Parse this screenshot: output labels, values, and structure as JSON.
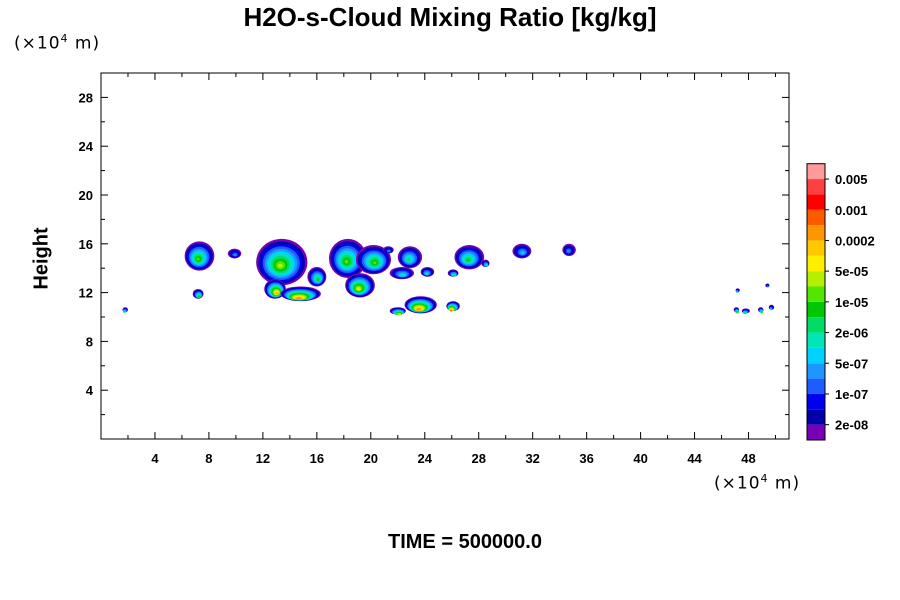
{
  "chart_data": {
    "type": "heatmap",
    "title": "H2O-s-Cloud Mixing Ratio [kg/kg]",
    "ylabel": "Height",
    "xlabel": "",
    "x_unit": {
      "prefix": "(×10",
      "exp": "4",
      "suffix": " m)"
    },
    "y_unit": {
      "prefix": "(×10",
      "exp": "4",
      "suffix": " m)"
    },
    "xlim": [
      0,
      51
    ],
    "ylim": [
      0,
      30
    ],
    "x_ticks": [
      4,
      8,
      12,
      16,
      20,
      24,
      28,
      32,
      36,
      40,
      44,
      48
    ],
    "y_ticks": [
      4,
      8,
      12,
      16,
      20,
      24,
      28
    ],
    "time_label": "TIME = 500000.0",
    "colorbar": {
      "colors": [
        "#7a00b8",
        "#0000a8",
        "#0000f0",
        "#1e5cff",
        "#1e96ff",
        "#00d2ff",
        "#00e6b4",
        "#00dc64",
        "#00c800",
        "#50e600",
        "#b4f000",
        "#ffee00",
        "#ffc800",
        "#ff9600",
        "#ff5a00",
        "#ff0000",
        "#ff4040",
        "#ff9a9a"
      ],
      "labels": [
        "2e-08",
        "1e-07",
        "5e-07",
        "2e-06",
        "1e-05",
        "5e-05",
        "0.0002",
        "0.001",
        "0.005"
      ]
    },
    "clouds": [
      {
        "x": 7.3,
        "y": 15.0,
        "rx": 1.1,
        "ry": 1.2,
        "peak": 9
      },
      {
        "x": 9.9,
        "y": 15.2,
        "rx": 0.5,
        "ry": 0.4,
        "peak": 4
      },
      {
        "x": 13.4,
        "y": 14.5,
        "rx": 1.9,
        "ry": 1.9,
        "peak": 10
      },
      {
        "x": 12.9,
        "y": 12.3,
        "rx": 0.8,
        "ry": 0.8,
        "peak": 13
      },
      {
        "x": 14.8,
        "y": 11.9,
        "rx": 1.5,
        "ry": 0.6,
        "peak": 14
      },
      {
        "x": 16.0,
        "y": 13.3,
        "rx": 0.7,
        "ry": 0.8,
        "peak": 8
      },
      {
        "x": 18.3,
        "y": 14.8,
        "rx": 1.4,
        "ry": 1.6,
        "peak": 9
      },
      {
        "x": 20.2,
        "y": 14.7,
        "rx": 1.3,
        "ry": 1.2,
        "peak": 9
      },
      {
        "x": 19.2,
        "y": 12.6,
        "rx": 1.1,
        "ry": 1.0,
        "peak": 11
      },
      {
        "x": 21.3,
        "y": 15.5,
        "rx": 0.4,
        "ry": 0.3,
        "peak": 4
      },
      {
        "x": 22.9,
        "y": 14.9,
        "rx": 0.9,
        "ry": 0.9,
        "peak": 7
      },
      {
        "x": 22.3,
        "y": 13.6,
        "rx": 0.9,
        "ry": 0.5,
        "peak": 6
      },
      {
        "x": 24.2,
        "y": 13.7,
        "rx": 0.5,
        "ry": 0.4,
        "peak": 6
      },
      {
        "x": 26.1,
        "y": 13.6,
        "rx": 0.4,
        "ry": 0.3,
        "peak": 8
      },
      {
        "x": 27.3,
        "y": 14.9,
        "rx": 1.1,
        "ry": 1.0,
        "peak": 8
      },
      {
        "x": 28.5,
        "y": 14.4,
        "rx": 0.3,
        "ry": 0.3,
        "peak": 7
      },
      {
        "x": 23.7,
        "y": 11.0,
        "rx": 1.2,
        "ry": 0.7,
        "peak": 14
      },
      {
        "x": 22.0,
        "y": 10.5,
        "rx": 0.6,
        "ry": 0.3,
        "peak": 12
      },
      {
        "x": 26.1,
        "y": 10.9,
        "rx": 0.5,
        "ry": 0.4,
        "peak": 15
      },
      {
        "x": 31.2,
        "y": 15.4,
        "rx": 0.7,
        "ry": 0.6,
        "peak": 5
      },
      {
        "x": 34.7,
        "y": 15.5,
        "rx": 0.5,
        "ry": 0.5,
        "peak": 4
      },
      {
        "x": 7.2,
        "y": 11.9,
        "rx": 0.4,
        "ry": 0.4,
        "peak": 9
      },
      {
        "x": 1.8,
        "y": 10.6,
        "rx": 0.2,
        "ry": 0.2,
        "peak": 9
      },
      {
        "x": 47.1,
        "y": 10.6,
        "rx": 0.2,
        "ry": 0.2,
        "peak": 13
      },
      {
        "x": 47.8,
        "y": 10.5,
        "rx": 0.3,
        "ry": 0.2,
        "peak": 9
      },
      {
        "x": 48.9,
        "y": 10.6,
        "rx": 0.2,
        "ry": 0.2,
        "peak": 11
      },
      {
        "x": 49.7,
        "y": 10.8,
        "rx": 0.2,
        "ry": 0.2,
        "peak": 6
      },
      {
        "x": 49.4,
        "y": 12.6,
        "rx": 0.15,
        "ry": 0.15,
        "peak": 5
      },
      {
        "x": 47.2,
        "y": 12.2,
        "rx": 0.15,
        "ry": 0.15,
        "peak": 8
      }
    ]
  }
}
